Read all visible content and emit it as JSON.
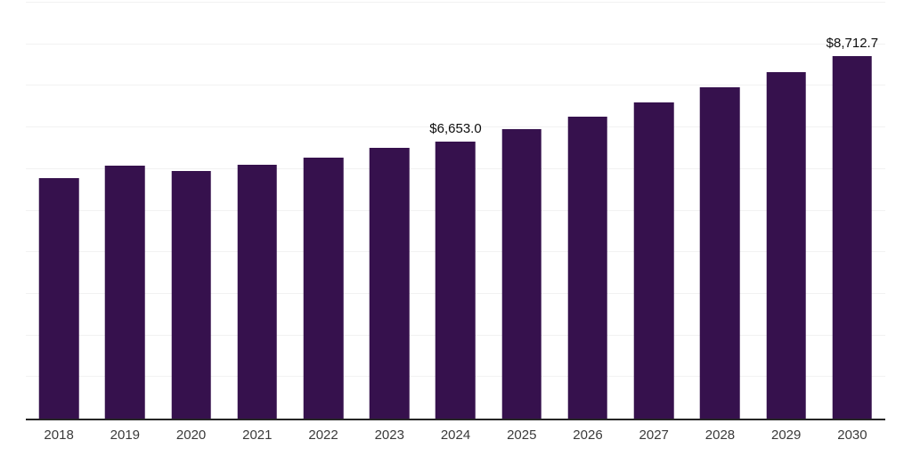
{
  "chart_data": {
    "type": "bar",
    "categories": [
      "2018",
      "2019",
      "2020",
      "2021",
      "2022",
      "2023",
      "2024",
      "2025",
      "2026",
      "2027",
      "2028",
      "2029",
      "2030"
    ],
    "values": [
      5790,
      6090,
      5950,
      6110,
      6270,
      6510,
      6653.0,
      6950,
      7270,
      7605,
      7960,
      8335,
      8712.7
    ],
    "annotations": [
      {
        "index": 6,
        "text": "$6,653.0"
      },
      {
        "index": 12,
        "text": "$8,712.7"
      }
    ],
    "title": "",
    "xlabel": "",
    "ylabel": "",
    "ylim": [
      0,
      10000
    ],
    "gridline_interval": 1000,
    "grid": true,
    "legend": "none",
    "bar_color": "#36114d",
    "gridline_color": "#f2f2f2",
    "axis_line_color": "#262626",
    "value_label_color": "#0d0d0d",
    "tick_label_color": "#3a3a3a",
    "background_color": "#ffffff"
  }
}
